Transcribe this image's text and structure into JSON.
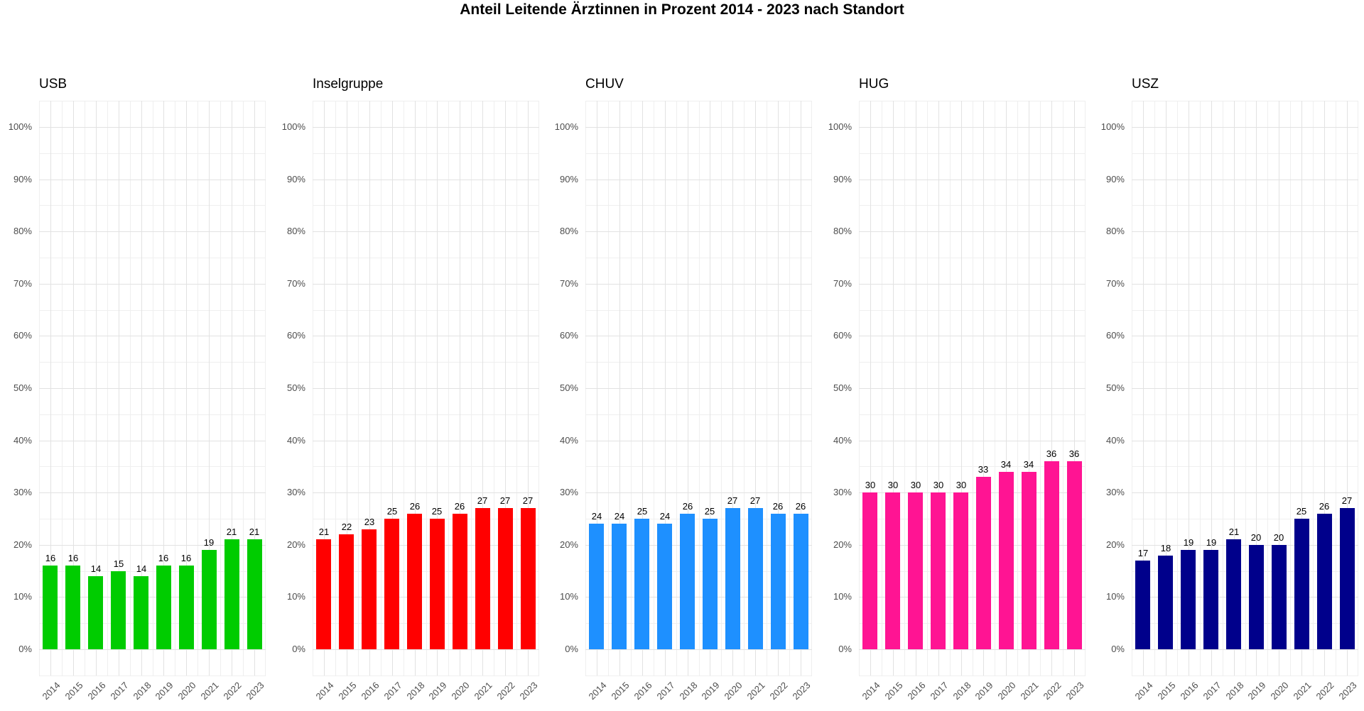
{
  "title": "Anteil Leitende Ärztinnen in Prozent 2014 - 2023 nach Standort",
  "chart_data": {
    "type": "bar",
    "title": "Anteil Leitende Ärztinnen in Prozent 2014 - 2023 nach Standort",
    "categories": [
      "2014",
      "2015",
      "2016",
      "2017",
      "2018",
      "2019",
      "2020",
      "2021",
      "2022",
      "2023"
    ],
    "facet_layout": "5 side-by-side panels, one per location, shared percent scale",
    "xlabel": "",
    "ylabel": "",
    "ylim": [
      0,
      100
    ],
    "y_major_step": 10,
    "y_minor_step": 5,
    "grid": true,
    "legend": false,
    "y_tick_labels": [
      "0%",
      "10%",
      "20%",
      "30%",
      "40%",
      "50%",
      "60%",
      "70%",
      "80%",
      "90%",
      "100%"
    ],
    "value_suffix_axis": "%",
    "series": [
      {
        "name": "USB",
        "color": "#00cc00",
        "values": [
          16,
          16,
          14,
          15,
          14,
          16,
          16,
          19,
          21,
          21
        ]
      },
      {
        "name": "Inselgruppe",
        "color": "#ff0000",
        "values": [
          21,
          22,
          23,
          25,
          26,
          25,
          26,
          27,
          27,
          27
        ]
      },
      {
        "name": "CHUV",
        "color": "#1e90ff",
        "values": [
          24,
          24,
          25,
          24,
          26,
          25,
          27,
          27,
          26,
          26
        ]
      },
      {
        "name": "HUG",
        "color": "#ff1493",
        "values": [
          30,
          30,
          30,
          30,
          30,
          33,
          34,
          34,
          36,
          36
        ]
      },
      {
        "name": "USZ",
        "color": "#00008b",
        "values": [
          17,
          18,
          19,
          19,
          21,
          20,
          20,
          25,
          26,
          27
        ]
      }
    ],
    "colors": {
      "background": "#ffffff",
      "grid_major": "#e2e2e2",
      "grid_minor": "#efefef",
      "axis_text": "#4d4d4d",
      "bar_label_text": "#000000",
      "title_text": "#000000"
    }
  }
}
